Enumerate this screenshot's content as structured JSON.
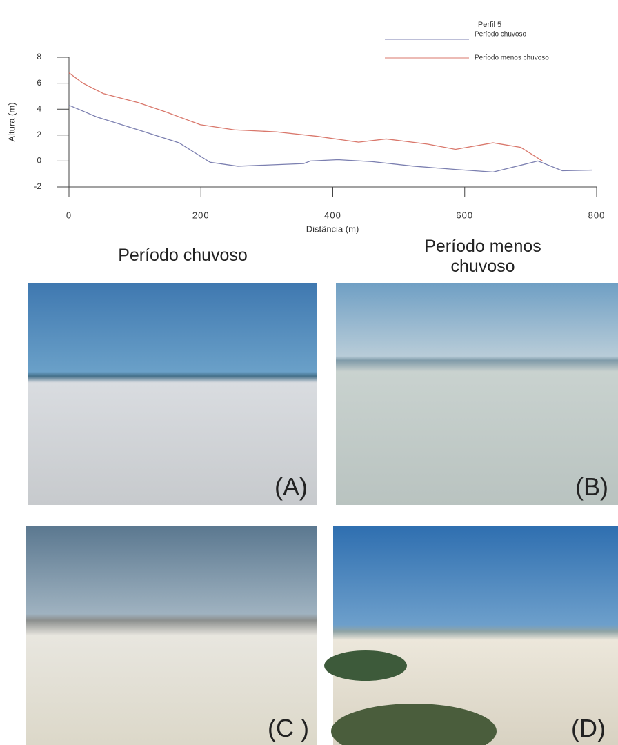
{
  "chart_data": {
    "type": "line",
    "title": "Perfil 5",
    "xlabel": "Distância (m)",
    "ylabel": "Altura (m)",
    "xlim": [
      0,
      800
    ],
    "ylim": [
      -2,
      8
    ],
    "xticks": [
      0,
      200,
      400,
      600,
      800
    ],
    "yticks": [
      -2,
      0,
      2,
      4,
      6,
      8
    ],
    "legend": "top-right",
    "series": [
      {
        "name": "Período chuvoso",
        "color": "#7b7fb0",
        "x": [
          0,
          42,
          105,
          167,
          214,
          256,
          356,
          366,
          408,
          460,
          523,
          586,
          643,
          711,
          748,
          793
        ],
        "values": [
          4.3,
          3.4,
          2.4,
          1.4,
          -0.1,
          -0.4,
          -0.2,
          0,
          0.1,
          -0.05,
          -0.4,
          -0.65,
          -0.85,
          0,
          -0.75,
          -0.7
        ]
      },
      {
        "name": "Período menos chuvoso",
        "color": "#d9776b",
        "x": [
          0,
          21,
          52,
          105,
          146,
          199,
          251,
          314,
          377,
          439,
          481,
          544,
          586,
          643,
          685,
          718
        ],
        "values": [
          6.8,
          6.0,
          5.2,
          4.5,
          3.8,
          2.8,
          2.4,
          2.25,
          1.9,
          1.45,
          1.7,
          1.3,
          0.9,
          1.4,
          1.05,
          0
        ]
      }
    ]
  },
  "photos": {
    "heading_left": "Período chuvoso",
    "heading_right": "Período menos chuvoso",
    "labels": [
      "(A)",
      "(B)",
      "(C )",
      "(D)"
    ]
  }
}
